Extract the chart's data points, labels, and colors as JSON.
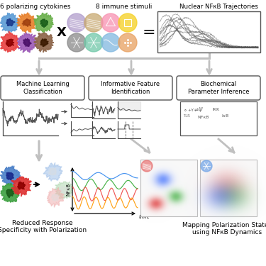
{
  "bg_color": "#ffffff",
  "top_labels": {
    "cytokines": "6 polarizing cytokines",
    "stimuli": "8 immune stimuli",
    "trajectories": "Nuclear NFκB Trajectories"
  },
  "cytokine_colors": [
    "#5b9bd5",
    "#e8802a",
    "#6ab04c",
    "#e84040",
    "#9b59b6",
    "#8b6347"
  ],
  "cytokine_dark": [
    "#1a3a8c",
    "#a04010",
    "#1a5e1a",
    "#8c0000",
    "#4a1068",
    "#3a1a00"
  ],
  "stimuli_colors": [
    "#b09ccc",
    "#c8a870",
    "#f890b0",
    "#f5d020",
    "#888888",
    "#70c8a8",
    "#80b8e0",
    "#e8a060"
  ],
  "box_labels": {
    "ml": "Machine Learning\nClassification",
    "feature": "Informative Feature\nIdentification",
    "biochem": "Biochemical\nParameter Inference"
  },
  "bottom_labels": {
    "left": "Reduced Response\nSpecificity with Polarization",
    "right": "Mapping Polarization States\nusing NFκB Dynamics"
  },
  "arrow_color": "#c0c0c0",
  "scatter_colors_sep": [
    "#3366ff",
    "#33aa33",
    "#dd2222"
  ],
  "scatter_colors_ov": [
    "#4488ff",
    "#44bb44",
    "#ee3333"
  ],
  "wave_colors": [
    "#33bb33",
    "#ff5555",
    "#ff9933",
    "#5599ff"
  ]
}
